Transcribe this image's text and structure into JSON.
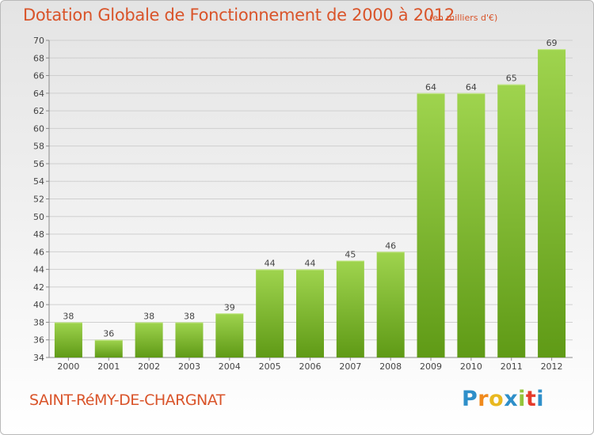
{
  "header": {
    "title": "Dotation Globale de Fonctionnement de 2000 à 2012",
    "subtitle": "(en milliers d'€)"
  },
  "footer": {
    "commune": "SAINT-RéMY-DE-CHARGNAT",
    "logo_letters": [
      "P",
      "r",
      "o",
      "x",
      "i",
      "t",
      "i"
    ],
    "logo_colors": [
      "#2e8fc9",
      "#f08a1c",
      "#e8b820",
      "#2e8fc9",
      "#94c43a",
      "#e43b2b",
      "#2e8fc9"
    ]
  },
  "chart_data": {
    "type": "bar",
    "title": "Dotation Globale de Fonctionnement de 2000 à 2012",
    "subtitle": "(en milliers d'€)",
    "categories": [
      "2000",
      "2001",
      "2002",
      "2003",
      "2004",
      "2005",
      "2006",
      "2007",
      "2008",
      "2009",
      "2010",
      "2011",
      "2012"
    ],
    "values": [
      38,
      36,
      38,
      38,
      39,
      44,
      44,
      45,
      46,
      64,
      64,
      65,
      69
    ],
    "value_labels": [
      "38",
      "36",
      "38",
      "38",
      "39",
      "44",
      "44",
      "45",
      "46",
      "64",
      "64",
      "65",
      "69"
    ],
    "ylim": [
      34,
      70
    ],
    "yticks": [
      "34",
      "36",
      "38",
      "40",
      "42",
      "44",
      "46",
      "48",
      "50",
      "52",
      "54",
      "56",
      "58",
      "60",
      "62",
      "64",
      "66",
      "68",
      "70"
    ],
    "grid": true,
    "bar_color": "#7cb832"
  }
}
